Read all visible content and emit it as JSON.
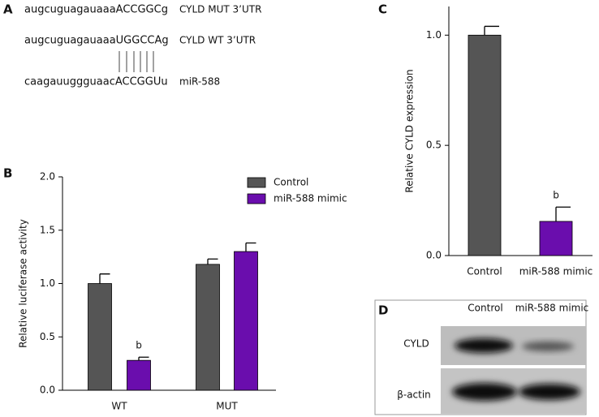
{
  "panel_a": {
    "label": "A",
    "rows": [
      {
        "sequence": "augcuguagauaaaACCGGCg",
        "name": "CYLD MUT 3’UTR"
      },
      {
        "sequence": "augcuguagauaaaUGGCCAg",
        "name": "CYLD WT 3’UTR"
      },
      {
        "sequence": "caagauuggguaacACCGGUu",
        "name": "miR-588"
      }
    ]
  },
  "chart_data": [
    {
      "type": "bar",
      "panel": "B",
      "ylabel": "Relative luciferase activity",
      "categories": [
        "WT",
        "MUT"
      ],
      "series": [
        {
          "name": "Control",
          "color": "#555555",
          "values": [
            1.0,
            1.18
          ],
          "errors": [
            0.09,
            0.05
          ]
        },
        {
          "name": "miR-588 mimic",
          "color": "#6a0dad",
          "values": [
            0.28,
            1.3
          ],
          "errors": [
            0.03,
            0.08
          ]
        }
      ],
      "ylim": [
        0,
        2
      ],
      "yticks": [
        {
          "value": 0,
          "label": "0.0"
        },
        {
          "value": 0.5,
          "label": "0.5"
        },
        {
          "value": 1,
          "label": "1.0"
        },
        {
          "value": 1.5,
          "label": "1.5"
        },
        {
          "value": 2,
          "label": "2.0"
        }
      ],
      "annotation": "b"
    },
    {
      "type": "bar",
      "panel": "C",
      "ylabel": "Relative CYLD  expression",
      "categories": [
        "Control",
        "miR-588 mimic"
      ],
      "values": [
        1.0,
        0.155
      ],
      "errors": [
        0.04,
        0.065
      ],
      "colors": [
        "#555555",
        "#6a0dad"
      ],
      "ylim": [
        0,
        1.13
      ],
      "yticks": [
        {
          "value": 0,
          "label": "0.0"
        },
        {
          "value": 0.5,
          "label": "0.5"
        },
        {
          "value": 1,
          "label": "1.0"
        }
      ],
      "annotation": "b"
    }
  ],
  "panel_d": {
    "label": "D",
    "lanes": [
      "Control",
      "miR-588 mimic"
    ],
    "rows": [
      "CYLD",
      "β-actin"
    ]
  }
}
